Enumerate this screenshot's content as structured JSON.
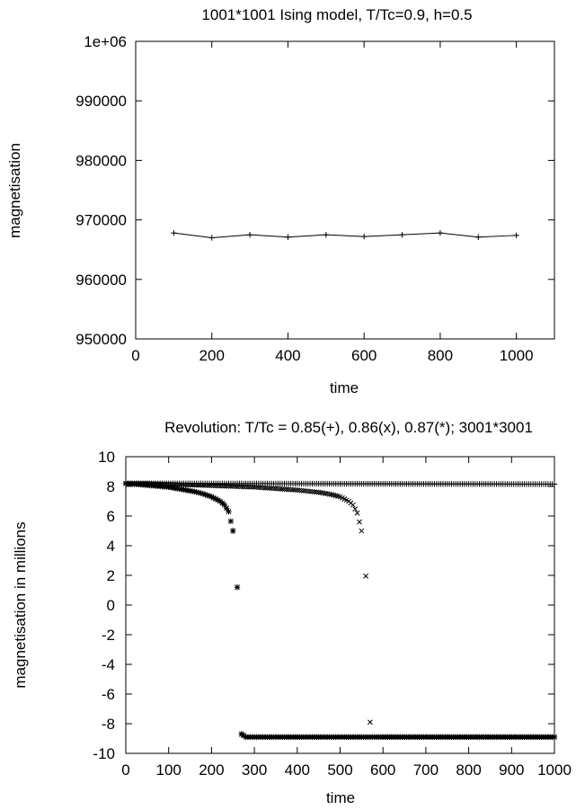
{
  "chart_data": [
    {
      "type": "line",
      "title": "1001*1001 Ising model, T/Tc=0.9, h=0.5",
      "xlabel": "time",
      "ylabel": "magnetisation",
      "xlim": [
        0,
        1100
      ],
      "ylim": [
        950000,
        1000000
      ],
      "xticks": [
        0,
        200,
        400,
        600,
        800,
        1000
      ],
      "yticks": [
        "950000",
        "960000",
        "970000",
        "980000",
        "990000",
        "1e+06"
      ],
      "ytick_values": [
        950000,
        960000,
        970000,
        980000,
        990000,
        1000000
      ],
      "grid": false,
      "series": [
        {
          "marker": "+",
          "x": [
            100,
            200,
            300,
            400,
            500,
            600,
            700,
            800,
            900,
            1000
          ],
          "y": [
            967800,
            967000,
            967500,
            967100,
            967500,
            967200,
            967500,
            967800,
            967100,
            967400
          ]
        }
      ]
    },
    {
      "type": "scatter",
      "title": "Revolution: T/Tc = 0.85(+), 0.86(x), 0.87(*); 3001*3001",
      "xlabel": "time",
      "ylabel": "magnetisation in millions",
      "xlim": [
        0,
        1000
      ],
      "ylim": [
        -10,
        10
      ],
      "xticks": [
        0,
        100,
        200,
        300,
        400,
        500,
        600,
        700,
        800,
        900,
        1000
      ],
      "yticks": [
        -10,
        -8,
        -6,
        -4,
        -2,
        0,
        2,
        4,
        6,
        8,
        10
      ],
      "grid": false,
      "series": [
        {
          "marker": "+",
          "x": [
            0,
            1000
          ],
          "y": [
            8.2,
            8.15
          ]
        },
        {
          "marker": "x",
          "x": [
            0,
            50,
            100,
            150,
            200,
            250,
            300,
            350,
            400,
            450,
            480,
            500,
            510,
            520,
            530,
            540,
            550,
            560,
            570,
            600,
            650,
            700,
            750,
            800,
            850,
            900,
            950,
            1000
          ],
          "y": [
            8.2,
            8.2,
            8.15,
            8.1,
            8.05,
            8.0,
            7.95,
            7.85,
            7.75,
            7.6,
            7.45,
            7.3,
            7.15,
            7.0,
            6.75,
            6.2,
            5.0,
            1.95,
            -7.9,
            -8.9,
            -8.9,
            -8.9,
            -8.9,
            -8.9,
            -8.9,
            -8.9,
            -8.9,
            -8.9
          ],
          "outliers_x": [
            550,
            560,
            570
          ],
          "outliers_y": [
            5.0,
            1.95,
            -7.9
          ]
        },
        {
          "marker": "*",
          "x": [
            0,
            20,
            40,
            60,
            80,
            100,
            120,
            140,
            160,
            180,
            200,
            210,
            220,
            230,
            240,
            250,
            260,
            270,
            280,
            300,
            350,
            400,
            450,
            500,
            600,
            700,
            800,
            900,
            1000
          ],
          "y": [
            8.2,
            8.15,
            8.1,
            8.05,
            8.0,
            7.95,
            7.85,
            7.75,
            7.65,
            7.5,
            7.3,
            7.15,
            7.0,
            6.75,
            6.3,
            5.0,
            1.2,
            -8.7,
            -8.9,
            -8.9,
            -8.9,
            -8.9,
            -8.9,
            -8.9,
            -8.9,
            -8.9,
            -8.9,
            -8.9,
            -8.9
          ]
        }
      ]
    }
  ]
}
